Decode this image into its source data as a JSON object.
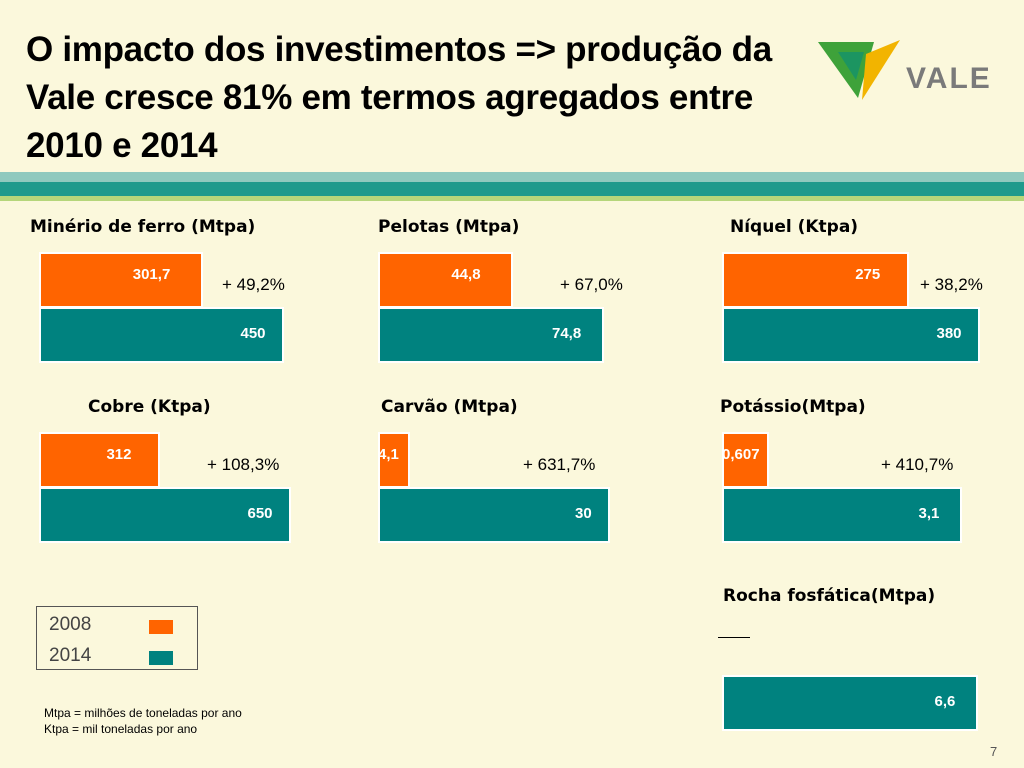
{
  "title": "O impacto dos investimentos => produção da Vale cresce 81% em termos agregados entre 2010 e 2014",
  "logo": {
    "text": "VALE",
    "colors": {
      "green": "#3ea23a",
      "yellow": "#f2b400",
      "teal": "#008a82"
    }
  },
  "colors": {
    "2008": "#ff6400",
    "2014": "#00827f",
    "background": "#fbf8dc"
  },
  "chart_data": [
    {
      "type": "bar",
      "orientation": "horizontal",
      "title": "Minério de ferro (Mtpa)",
      "categories": [
        "2008",
        "2014"
      ],
      "values": [
        301.7,
        450
      ],
      "labels": [
        "301,7",
        "450"
      ],
      "growth": "+ 49,2%"
    },
    {
      "type": "bar",
      "orientation": "horizontal",
      "title": "Pelotas (Mtpa)",
      "categories": [
        "2008",
        "2014"
      ],
      "values": [
        44.8,
        74.8
      ],
      "labels": [
        "44,8",
        "74,8"
      ],
      "growth": "+ 67,0%"
    },
    {
      "type": "bar",
      "orientation": "horizontal",
      "title": "Níquel (Ktpa)",
      "categories": [
        "2008",
        "2014"
      ],
      "values": [
        275,
        380
      ],
      "labels": [
        "275",
        "380"
      ],
      "growth": "+ 38,2%"
    },
    {
      "type": "bar",
      "orientation": "horizontal",
      "title": "Cobre (Ktpa)",
      "categories": [
        "2008",
        "2014"
      ],
      "values": [
        312,
        650
      ],
      "labels": [
        "312",
        "650"
      ],
      "growth": "+ 108,3%"
    },
    {
      "type": "bar",
      "orientation": "horizontal",
      "title": "Carvão (Mtpa)",
      "categories": [
        "2008",
        "2014"
      ],
      "values": [
        4.1,
        30
      ],
      "labels": [
        "4,1",
        "30"
      ],
      "growth": "+ 631,7%"
    },
    {
      "type": "bar",
      "orientation": "horizontal",
      "title": "Potássio(Mtpa)",
      "categories": [
        "2008",
        "2014"
      ],
      "values": [
        0.607,
        3.1
      ],
      "labels": [
        "0,607",
        "3,1"
      ],
      "growth": "+ 410,7%"
    },
    {
      "type": "bar",
      "orientation": "horizontal",
      "title": "Rocha fosfática(Mtpa)",
      "categories": [
        "2008",
        "2014"
      ],
      "values": [
        null,
        6.6
      ],
      "labels": [
        "",
        "6,6"
      ],
      "growth": ""
    }
  ],
  "legend": {
    "items": [
      {
        "label": "2008",
        "color": "#ff6400"
      },
      {
        "label": "2014",
        "color": "#00827f"
      }
    ]
  },
  "notes": [
    "Mtpa = milhões de toneladas por ano",
    "Ktpa = mil toneladas por ano"
  ],
  "page_number": "7"
}
